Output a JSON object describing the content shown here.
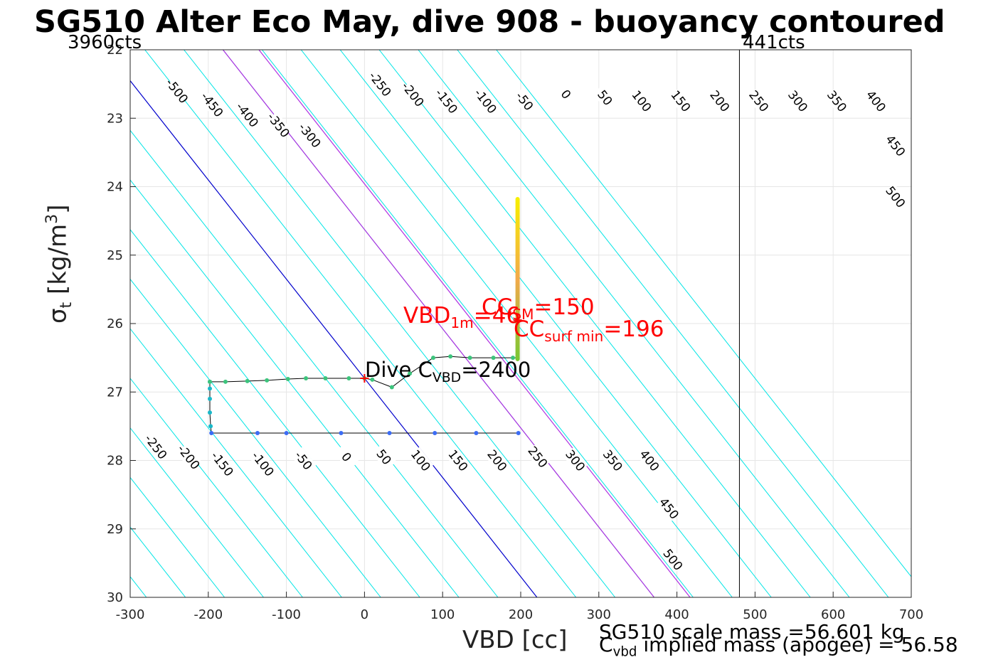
{
  "chart_data": {
    "type": "line",
    "title": "SG510 Alter Eco May, dive 908 - buoyancy contoured",
    "xlabel": "VBD [cc]",
    "ylabel_main": "σ",
    "ylabel_sub": "t",
    "ylabel_unit_pre": "[kg/m",
    "ylabel_unit_sup": "3",
    "ylabel_unit_post": "]",
    "xlim": [
      -300,
      700
    ],
    "ylim": [
      22,
      30
    ],
    "y_reversed": true,
    "grid": true,
    "x_ticks": [
      -300,
      -200,
      -100,
      0,
      100,
      200,
      300,
      400,
      500,
      600,
      700
    ],
    "x_tick_labels": [
      "-300",
      "-200",
      "-100",
      "0",
      "100",
      "200",
      "300",
      "400",
      "500",
      "600",
      "700"
    ],
    "y_ticks": [
      22,
      23,
      24,
      25,
      26,
      27,
      28,
      29,
      30
    ],
    "y_tick_labels": [
      "22",
      "23",
      "24",
      "25",
      "26",
      "27",
      "28",
      "29",
      "30"
    ],
    "contour_slope_cc_per_sigma": 69,
    "contour_levels": [
      -500,
      -450,
      -400,
      -350,
      -300,
      -250,
      -200,
      -150,
      -100,
      -50,
      0,
      50,
      100,
      150,
      200,
      250,
      300,
      350,
      400,
      450,
      500
    ],
    "contour_colors": {
      "default": "#00e5e5",
      "zero": "#0000cc",
      "highlight": "#b030e0"
    },
    "highlight_levels": [
      150,
      196
    ],
    "vertical_line_vbd": 480,
    "left_corner_label": "3960cts",
    "right_corner_label": "441cts",
    "profile_dive": [
      {
        "x": 197,
        "y": 27.6
      },
      {
        "x": 143,
        "y": 27.6
      },
      {
        "x": 90,
        "y": 27.6
      },
      {
        "x": 32,
        "y": 27.6
      },
      {
        "x": -30,
        "y": 27.6
      },
      {
        "x": -100,
        "y": 27.6
      },
      {
        "x": -137,
        "y": 27.6
      },
      {
        "x": -196,
        "y": 27.6
      },
      {
        "x": -197,
        "y": 27.5
      },
      {
        "x": -198,
        "y": 27.3
      },
      {
        "x": -198,
        "y": 27.1
      },
      {
        "x": -198,
        "y": 26.95
      },
      {
        "x": -198,
        "y": 26.85
      }
    ],
    "profile_climb": [
      {
        "x": -198,
        "y": 26.85
      },
      {
        "x": -178,
        "y": 26.85
      },
      {
        "x": -150,
        "y": 26.84
      },
      {
        "x": -125,
        "y": 26.83
      },
      {
        "x": -98,
        "y": 26.81
      },
      {
        "x": -75,
        "y": 26.8
      },
      {
        "x": -50,
        "y": 26.8
      },
      {
        "x": -20,
        "y": 26.8
      },
      {
        "x": 0,
        "y": 26.8
      },
      {
        "x": 10,
        "y": 26.82
      },
      {
        "x": 35,
        "y": 26.93
      },
      {
        "x": 58,
        "y": 26.73
      },
      {
        "x": 88,
        "y": 26.5
      },
      {
        "x": 110,
        "y": 26.48
      },
      {
        "x": 135,
        "y": 26.5
      },
      {
        "x": 165,
        "y": 26.5
      },
      {
        "x": 190,
        "y": 26.5
      },
      {
        "x": 196,
        "y": 26.5
      }
    ],
    "surface_bar": {
      "x": 196,
      "y_top": 24.15,
      "y_bottom": 26.55
    },
    "markers": [
      {
        "name": "vbd-1m-marker",
        "x": 0,
        "y": 26.8
      },
      {
        "name": "cc-marker",
        "x": 196,
        "y": 25.95
      }
    ],
    "contour_labels_upper": [
      {
        "level": "-500",
        "x": -240,
        "y": 22.6
      },
      {
        "level": "-450",
        "x": -195,
        "y": 22.8
      },
      {
        "level": "-400",
        "x": -150,
        "y": 22.95
      },
      {
        "level": "-350",
        "x": -110,
        "y": 23.1
      },
      {
        "level": "-300",
        "x": -70,
        "y": 23.25
      },
      {
        "level": "-250",
        "x": 20,
        "y": 22.5
      },
      {
        "level": "-200",
        "x": 62,
        "y": 22.65
      },
      {
        "level": "-150",
        "x": 105,
        "y": 22.75
      },
      {
        "level": "-100",
        "x": 155,
        "y": 22.75
      },
      {
        "level": "-50",
        "x": 205,
        "y": 22.75
      },
      {
        "level": "0",
        "x": 258,
        "y": 22.65
      },
      {
        "level": "50",
        "x": 308,
        "y": 22.7
      },
      {
        "level": "100",
        "x": 355,
        "y": 22.75
      },
      {
        "level": "150",
        "x": 405,
        "y": 22.75
      },
      {
        "level": "200",
        "x": 455,
        "y": 22.75
      },
      {
        "level": "250",
        "x": 505,
        "y": 22.75
      },
      {
        "level": "300",
        "x": 555,
        "y": 22.75
      },
      {
        "level": "350",
        "x": 605,
        "y": 22.75
      },
      {
        "level": "400",
        "x": 655,
        "y": 22.75
      },
      {
        "level": "450",
        "x": 680,
        "y": 23.4
      },
      {
        "level": "500",
        "x": 680,
        "y": 24.15
      }
    ],
    "contour_labels_lower": [
      {
        "level": "-250",
        "x": -267,
        "y": 27.8
      },
      {
        "level": "-200",
        "x": -225,
        "y": 27.95
      },
      {
        "level": "-150",
        "x": -182,
        "y": 28.05
      },
      {
        "level": "-100",
        "x": -130,
        "y": 28.05
      },
      {
        "level": "-50",
        "x": -78,
        "y": 28.0
      },
      {
        "level": "0",
        "x": -23,
        "y": 27.95
      },
      {
        "level": "50",
        "x": 25,
        "y": 27.95
      },
      {
        "level": "100",
        "x": 72,
        "y": 28.0
      },
      {
        "level": "150",
        "x": 120,
        "y": 28.0
      },
      {
        "level": "200",
        "x": 170,
        "y": 28.0
      },
      {
        "level": "250",
        "x": 222,
        "y": 27.95
      },
      {
        "level": "300",
        "x": 270,
        "y": 28.0
      },
      {
        "level": "350",
        "x": 318,
        "y": 28.0
      },
      {
        "level": "400",
        "x": 365,
        "y": 28.0
      },
      {
        "level": "450",
        "x": 390,
        "y": 28.7
      },
      {
        "level": "500",
        "x": 395,
        "y": 29.45
      }
    ]
  },
  "annotations": {
    "vbd1m_main": "VBD",
    "vbd1m_sub": "1m",
    "vbd1m_value": "=46",
    "ccsm_main": "CC",
    "ccsm_sub": "SM",
    "ccsm_value": "=150",
    "ccsurf_main": "CC",
    "ccsurf_sub": "surf min",
    "ccsurf_value": "=196",
    "dive_cvbd_main": "Dive C",
    "dive_cvbd_sub": "VBD",
    "dive_cvbd_value": "=2400",
    "scale_mass": "SG510 scale mass =56.601 kg",
    "implied_main": "C",
    "implied_sub": "vbd",
    "implied_rest": " implied mass (apogee) = 56.58"
  }
}
